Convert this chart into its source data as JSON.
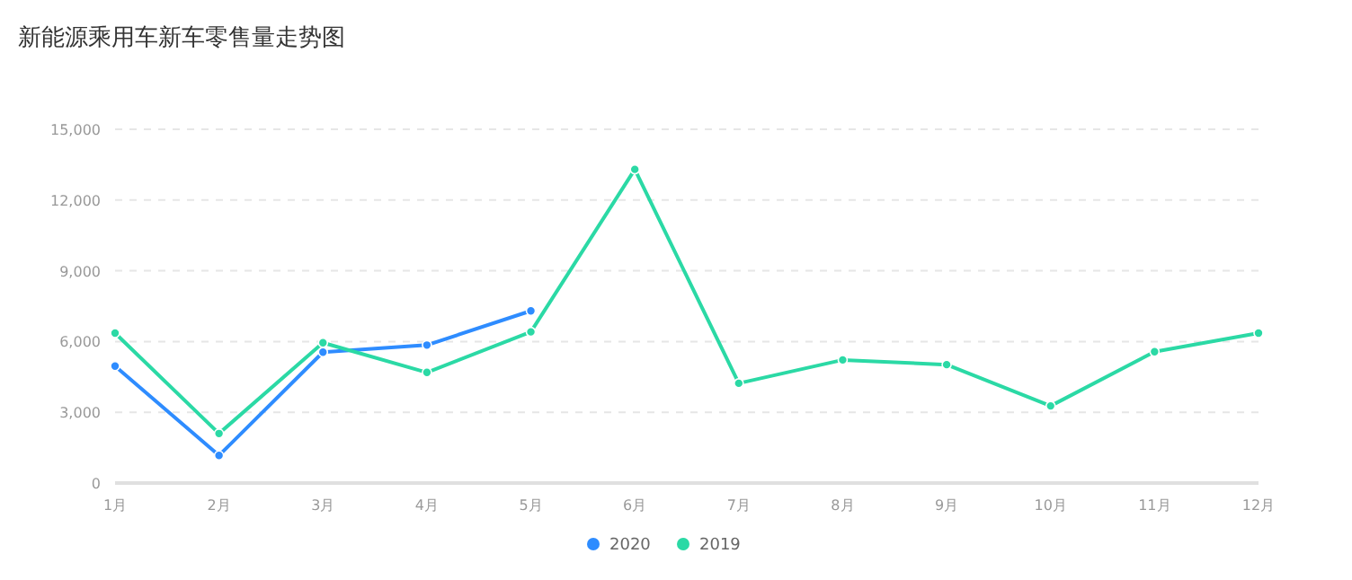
{
  "chart_data": {
    "type": "line",
    "title": "新能源乘用车新车零售量走势图",
    "categories": [
      "1月",
      "2月",
      "3月",
      "4月",
      "5月",
      "6月",
      "7月",
      "8月",
      "9月",
      "10月",
      "11月",
      "12月"
    ],
    "series": [
      {
        "name": "2020",
        "color": "#2e8cff",
        "values": [
          4960,
          1170,
          5550,
          5850,
          7300,
          null,
          null,
          null,
          null,
          null,
          null,
          null
        ]
      },
      {
        "name": "2019",
        "color": "#2bd9a5",
        "values": [
          6360,
          2100,
          5950,
          4690,
          6410,
          13300,
          4230,
          5220,
          5020,
          3270,
          5570,
          6360
        ]
      }
    ],
    "ylim": [
      0,
      15000
    ],
    "yticks": [
      {
        "value": 0,
        "label": "0"
      },
      {
        "value": 3000,
        "label": "3,000"
      },
      {
        "value": 6000,
        "label": "6,000"
      },
      {
        "value": 9000,
        "label": "9,000"
      },
      {
        "value": 12000,
        "label": "12,000"
      },
      {
        "value": 15000,
        "label": "15,000"
      }
    ],
    "grid": "y",
    "legend": "bottom",
    "marker": "circle"
  }
}
